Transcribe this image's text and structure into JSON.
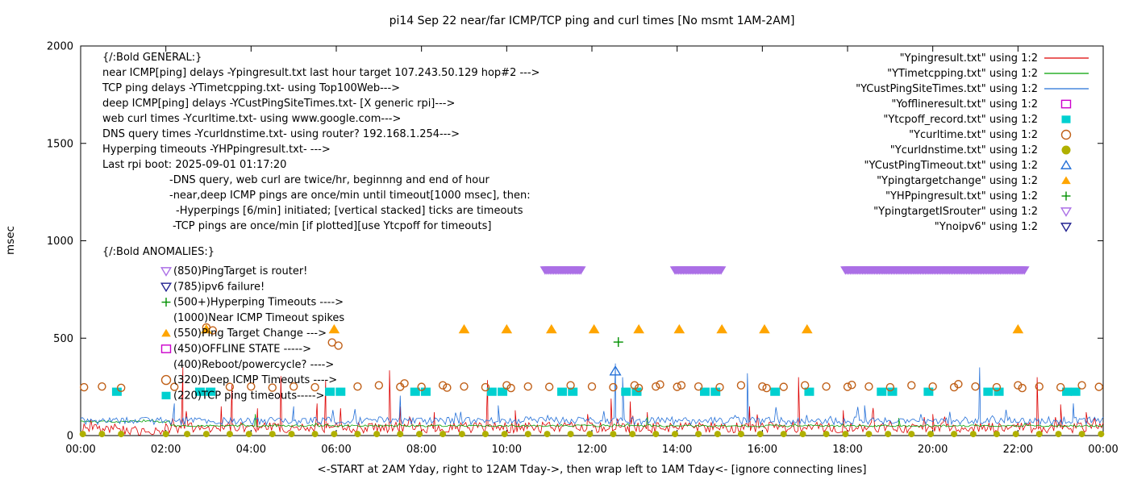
{
  "title": "pi14 Sep 22  near/far ICMP/TCP ping and curl times [No msmt 1AM-2AM]",
  "xlabel": "<-START at 2AM Yday, right to 12AM Tday->, then wrap left to 1AM Tday<- [ignore connecting lines]",
  "ylabel": "msec",
  "chart_data": {
    "type": "line",
    "x_range": [
      0,
      24
    ],
    "y_range": [
      0,
      2000
    ],
    "grid": false,
    "legend_position": "top-right",
    "x_ticks": [
      {
        "v": 0,
        "label": "00:00"
      },
      {
        "v": 2,
        "label": "02:00"
      },
      {
        "v": 4,
        "label": "04:00"
      },
      {
        "v": 6,
        "label": "06:00"
      },
      {
        "v": 8,
        "label": "08:00"
      },
      {
        "v": 10,
        "label": "10:00"
      },
      {
        "v": 12,
        "label": "12:00"
      },
      {
        "v": 14,
        "label": "14:00"
      },
      {
        "v": 16,
        "label": "16:00"
      },
      {
        "v": 18,
        "label": "18:00"
      },
      {
        "v": 20,
        "label": "20:00"
      },
      {
        "v": 22,
        "label": "22:00"
      },
      {
        "v": 24,
        "label": "00:00"
      }
    ],
    "y_ticks": [
      {
        "v": 0,
        "label": "0"
      },
      {
        "v": 500,
        "label": "500"
      },
      {
        "v": 1000,
        "label": "1000"
      },
      {
        "v": 1500,
        "label": "1500"
      },
      {
        "v": 2000,
        "label": "2000"
      }
    ],
    "lines": [
      {
        "name": "Ypingresult.txt",
        "color": "#dd0000",
        "noise": 55,
        "burst": 90,
        "levels": [
          [
            0,
            1,
            25
          ],
          [
            1,
            2,
            12
          ],
          [
            2,
            24,
            30
          ]
        ],
        "spikes": [
          [
            2.4,
            350
          ],
          [
            3.3,
            150
          ],
          [
            3.55,
            260
          ],
          [
            4.15,
            140
          ],
          [
            4.7,
            305
          ],
          [
            5.55,
            165
          ],
          [
            5.75,
            285
          ],
          [
            6.1,
            140
          ],
          [
            7.25,
            335
          ],
          [
            7.5,
            150
          ],
          [
            8.3,
            120
          ],
          [
            9.55,
            285
          ],
          [
            10.2,
            130
          ],
          [
            11.9,
            110
          ],
          [
            12.45,
            190
          ],
          [
            12.9,
            175
          ],
          [
            13.3,
            120
          ],
          [
            15.7,
            150
          ],
          [
            16.85,
            300
          ],
          [
            17.9,
            130
          ],
          [
            20.0,
            110
          ],
          [
            22.45,
            300
          ],
          [
            23.0,
            160
          ],
          [
            23.6,
            120
          ]
        ]
      },
      {
        "name": "YTimetcpping.txt",
        "color": "#00a000",
        "noise": 10,
        "burst": 12,
        "levels": [
          [
            0,
            2.1,
            70
          ],
          [
            2.1,
            24,
            48
          ]
        ],
        "spikes": [
          [
            4.1,
            110
          ],
          [
            13.3,
            95
          ],
          [
            19.2,
            90
          ]
        ]
      },
      {
        "name": "YCustPingSiteTimes.txt",
        "color": "#2470d8",
        "noise": 40,
        "burst": 60,
        "levels": [
          [
            0,
            24,
            68
          ]
        ],
        "spikes": [
          [
            2.2,
            165
          ],
          [
            5.0,
            150
          ],
          [
            7.5,
            205
          ],
          [
            9.8,
            155
          ],
          [
            12.55,
            370
          ],
          [
            12.72,
            300
          ],
          [
            15.65,
            320
          ],
          [
            18.4,
            155
          ],
          [
            21.1,
            350
          ],
          [
            23.3,
            165
          ]
        ]
      }
    ],
    "points": [
      {
        "name": "Yofflineresult.txt",
        "color": "#cc00cc",
        "marker": "square-open",
        "size": 5,
        "pts": []
      },
      {
        "name": "Ytcpoff_record.txt",
        "color": "#00d0d0",
        "marker": "square-filled",
        "size": 6,
        "pts": [
          [
            0.85,
            225
          ],
          [
            2.8,
            225
          ],
          [
            3.05,
            225
          ],
          [
            5.85,
            225
          ],
          [
            6.1,
            225
          ],
          [
            7.85,
            225
          ],
          [
            8.1,
            225
          ],
          [
            9.65,
            225
          ],
          [
            9.9,
            225
          ],
          [
            11.3,
            225
          ],
          [
            11.55,
            225
          ],
          [
            12.8,
            225
          ],
          [
            13.05,
            225
          ],
          [
            14.65,
            225
          ],
          [
            14.9,
            225
          ],
          [
            16.3,
            225
          ],
          [
            17.1,
            225
          ],
          [
            18.8,
            225
          ],
          [
            19.05,
            225
          ],
          [
            19.9,
            225
          ],
          [
            21.3,
            225
          ],
          [
            21.55,
            225
          ],
          [
            23.15,
            225
          ],
          [
            23.35,
            225
          ]
        ]
      },
      {
        "name": "Ycurltime.txt",
        "color": "#c06018",
        "marker": "circle-open",
        "size": 4.5,
        "pts": [
          [
            0.08,
            248
          ],
          [
            0.5,
            252
          ],
          [
            0.95,
            245
          ],
          [
            2.2,
            250
          ],
          [
            2.95,
            555
          ],
          [
            3.1,
            540
          ],
          [
            3.5,
            250
          ],
          [
            4.0,
            252
          ],
          [
            4.5,
            246
          ],
          [
            5.0,
            252
          ],
          [
            5.5,
            248
          ],
          [
            5.9,
            478
          ],
          [
            6.05,
            462
          ],
          [
            6.5,
            252
          ],
          [
            7.0,
            258
          ],
          [
            7.5,
            250
          ],
          [
            7.6,
            268
          ],
          [
            8.0,
            250
          ],
          [
            8.5,
            258
          ],
          [
            8.6,
            246
          ],
          [
            9.0,
            252
          ],
          [
            9.5,
            248
          ],
          [
            10.0,
            258
          ],
          [
            10.1,
            244
          ],
          [
            10.5,
            252
          ],
          [
            11.0,
            250
          ],
          [
            11.5,
            258
          ],
          [
            12.0,
            252
          ],
          [
            12.5,
            248
          ],
          [
            13.0,
            258
          ],
          [
            13.1,
            244
          ],
          [
            13.5,
            252
          ],
          [
            13.6,
            262
          ],
          [
            14.0,
            250
          ],
          [
            14.1,
            258
          ],
          [
            14.5,
            252
          ],
          [
            15.0,
            248
          ],
          [
            15.5,
            258
          ],
          [
            16.0,
            252
          ],
          [
            16.1,
            244
          ],
          [
            16.5,
            250
          ],
          [
            17.0,
            258
          ],
          [
            17.5,
            252
          ],
          [
            18.0,
            250
          ],
          [
            18.1,
            260
          ],
          [
            18.5,
            252
          ],
          [
            19.0,
            248
          ],
          [
            19.5,
            258
          ],
          [
            20.0,
            252
          ],
          [
            20.5,
            248
          ],
          [
            20.6,
            264
          ],
          [
            21.0,
            252
          ],
          [
            21.5,
            248
          ],
          [
            22.0,
            258
          ],
          [
            22.1,
            244
          ],
          [
            22.5,
            252
          ],
          [
            23.0,
            248
          ],
          [
            23.5,
            258
          ],
          [
            23.9,
            250
          ]
        ]
      },
      {
        "name": "Ycurldnstime.txt",
        "color": "#b0b000",
        "marker": "circle-filled",
        "size": 4,
        "xs": [
          0.05,
          0.5,
          0.95,
          2.0,
          2.5,
          2.95,
          3.5,
          3.95,
          4.5,
          4.95,
          5.5,
          5.95,
          6.5,
          6.95,
          7.5,
          7.95,
          8.5,
          8.95,
          9.5,
          9.95,
          10.5,
          10.95,
          11.5,
          11.95,
          12.5,
          12.95,
          13.5,
          13.95,
          14.5,
          14.95,
          15.5,
          15.95,
          16.5,
          16.95,
          17.5,
          17.95,
          18.5,
          18.95,
          19.5,
          19.95,
          20.5,
          20.95,
          21.5,
          21.95,
          22.5,
          22.95,
          23.5,
          23.95
        ],
        "y": 8
      },
      {
        "name": "YCustPingTimeout.txt",
        "color": "#2470d8",
        "marker": "triangle-up-open",
        "size": 6,
        "pts": [
          [
            12.55,
            330
          ]
        ]
      },
      {
        "name": "Ypingtargetchange",
        "color": "#ffa500",
        "marker": "triangle-up-filled",
        "size": 6.5,
        "pts": [
          [
            2.95,
            545
          ],
          [
            5.95,
            545
          ],
          [
            9.0,
            545
          ],
          [
            10.0,
            545
          ],
          [
            11.05,
            545
          ],
          [
            12.05,
            545
          ],
          [
            13.1,
            545
          ],
          [
            14.05,
            545
          ],
          [
            15.05,
            545
          ],
          [
            16.05,
            545
          ],
          [
            17.05,
            545
          ],
          [
            22.0,
            545
          ]
        ]
      },
      {
        "name": "YHPpingresult.txt",
        "color": "#009000",
        "marker": "plus",
        "size": 6,
        "pts": [
          [
            12.62,
            480
          ]
        ]
      },
      {
        "name": "Ynoipv6",
        "color": "#202090",
        "marker": "triangle-down-open",
        "size": 6,
        "pts": []
      }
    ],
    "bars": {
      "name": "YpingtargetISrouter",
      "color": "#ab6fe6",
      "marker": "triangle-down-filled",
      "y": 850,
      "segments": [
        [
          10.9,
          11.75
        ],
        [
          13.95,
          15.05
        ],
        [
          17.95,
          22.15
        ]
      ]
    },
    "legend": [
      {
        "label": "\"Ypingresult.txt\" using 1:2",
        "type": "line",
        "color": "#dd0000"
      },
      {
        "label": "\"YTimetcpping.txt\" using 1:2",
        "type": "line",
        "color": "#00a000"
      },
      {
        "label": "\"YCustPingSiteTimes.txt\" using 1:2",
        "type": "line",
        "color": "#2470d8"
      },
      {
        "label": "\"Yofflineresult.txt\" using 1:2",
        "type": "square-open",
        "color": "#cc00cc"
      },
      {
        "label": "\"Ytcpoff_record.txt\" using 1:2",
        "type": "square-filled",
        "color": "#00d0d0"
      },
      {
        "label": "\"Ycurltime.txt\" using 1:2",
        "type": "circle-open",
        "color": "#c06018"
      },
      {
        "label": "\"Ycurldnstime.txt\" using 1:2",
        "type": "circle-filled",
        "color": "#b0b000"
      },
      {
        "label": "\"YCustPingTimeout.txt\" using 1:2",
        "type": "triangle-up-open",
        "color": "#2470d8"
      },
      {
        "label": "\"Ypingtargetchange\" using 1:2",
        "type": "triangle-up-filled",
        "color": "#ffa500"
      },
      {
        "label": "\"YHPpingresult.txt\" using 1:2",
        "type": "plus",
        "color": "#009000"
      },
      {
        "label": "\"YpingtargetISrouter\" using 1:2",
        "type": "triangle-down-open",
        "color": "#ab6fe6"
      },
      {
        "label": "\"Ynoipv6\" using 1:2",
        "type": "triangle-down-open",
        "color": "#202090"
      }
    ]
  },
  "annotations": {
    "general": [
      {
        "x": 127,
        "text": "{/:Bold GENERAL:}"
      },
      {
        "x": 127,
        "text": "near ICMP[ping] delays -Ypingresult.txt last hour target 107.243.50.129 hop#2 --->"
      },
      {
        "x": 127,
        "text": "TCP ping delays -YTimetcpping.txt- using Top100Web--->"
      },
      {
        "x": 127,
        "text": "deep ICMP[ping] delays -YCustPingSiteTimes.txt- [X generic rpi]--->"
      },
      {
        "x": 127,
        "text": "web curl times -Ycurltime.txt- using www.google.com--->"
      },
      {
        "x": 127,
        "text": "DNS query times -Ycurldnstime.txt- using router? 192.168.1.254--->"
      },
      {
        "x": 127,
        "text": "Hyperping timeouts -YHPpingresult.txt- --->"
      },
      {
        "x": 127,
        "text": "Last rpi boot: 2025-09-01 01:17:20"
      },
      {
        "x": 210,
        "text": "-DNS query, web curl are twice/hr, beginnng and end of hour"
      },
      {
        "x": 210,
        "text": "-near,deep ICMP pings are once/min until timeout[1000 msec], then:"
      },
      {
        "x": 218,
        "text": "-Hyperpings [6/min] initiated; [vertical stacked] ticks are timeouts"
      },
      {
        "x": 214,
        "text": "-TCP pings are once/min [if plotted][use Ytcpoff for timeouts]"
      }
    ],
    "anomalies_header": "{/:Bold ANOMALIES:}",
    "anomalies": [
      {
        "marker": "triangle-down-open",
        "color": "#ab6fe6",
        "text": "(850)PingTarget is router!"
      },
      {
        "marker": "triangle-down-open",
        "color": "#202090",
        "text": "(785)ipv6 failure!"
      },
      {
        "marker": "plus",
        "color": "#009000",
        "text": "(500+)Hyperping Timeouts ---->"
      },
      {
        "marker": "none",
        "color": "",
        "text": "(1000)Near ICMP Timeout spikes"
      },
      {
        "marker": "triangle-up-filled",
        "color": "#ffa500",
        "text": "(550)Ping Target Change --->"
      },
      {
        "marker": "square-open",
        "color": "#cc00cc",
        "text": "(450)OFFLINE STATE ----->"
      },
      {
        "marker": "none",
        "color": "",
        "text": "(400)Reboot/powercycle? ---->"
      },
      {
        "marker": "circle-open",
        "color": "#c06018",
        "text": "(320)Deep ICMP Timeouts ---->"
      },
      {
        "marker": "square-filled",
        "color": "#00d0d0",
        "text": "(220)TCP ping timeouts----->"
      }
    ]
  }
}
